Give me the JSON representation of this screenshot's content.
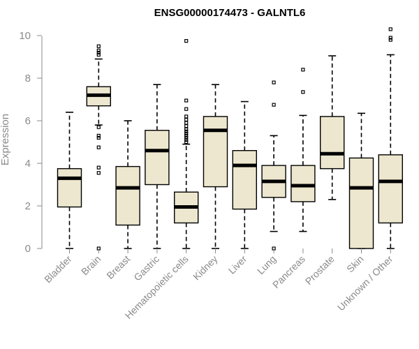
{
  "chart_data": {
    "type": "boxplot",
    "title": "ENSG00000174473 - GALNTL6",
    "xlabel": "",
    "ylabel": "Expression",
    "ylim": [
      0,
      10.5
    ],
    "yticks": [
      0,
      2,
      4,
      6,
      8,
      10
    ],
    "grid": false,
    "legend": "none",
    "colors": {
      "box_fill": "#ede7cf",
      "stroke": "#000000",
      "axis": "#888888",
      "text": "#8a8a8a"
    },
    "categories": [
      "Bladder",
      "Brain",
      "Breast",
      "Gastric",
      "Hematopoietic cells",
      "Kidney",
      "Liver",
      "Lung",
      "Pancreas",
      "Prostate",
      "Skin",
      "Unknown / Other"
    ],
    "boxes": [
      {
        "name": "Bladder",
        "min": 0.0,
        "q1": 1.95,
        "median": 3.3,
        "q3": 3.75,
        "max": 6.4,
        "outliers": []
      },
      {
        "name": "Brain",
        "min": 5.8,
        "q1": 6.7,
        "median": 7.2,
        "q3": 7.6,
        "max": 8.9,
        "outliers": [
          9.5,
          9.3,
          9.2,
          9.1,
          5.7,
          5.3,
          5.2,
          4.75,
          3.8,
          3.55,
          0.0
        ]
      },
      {
        "name": "Breast",
        "min": 0.0,
        "q1": 1.1,
        "median": 2.85,
        "q3": 3.85,
        "max": 6.0,
        "outliers": []
      },
      {
        "name": "Gastric",
        "min": 0.0,
        "q1": 3.0,
        "median": 4.6,
        "q3": 5.55,
        "max": 7.7,
        "outliers": []
      },
      {
        "name": "Hematopoietic cells",
        "min": 0.0,
        "q1": 1.2,
        "median": 1.95,
        "q3": 2.65,
        "max": 4.9,
        "outliers": [
          9.75,
          6.95,
          6.55,
          6.2,
          6.05,
          5.9,
          5.75,
          5.6,
          5.5,
          5.4,
          5.3,
          5.2,
          5.1,
          5.0
        ]
      },
      {
        "name": "Kidney",
        "min": 0.0,
        "q1": 2.9,
        "median": 5.55,
        "q3": 6.2,
        "max": 7.7,
        "outliers": []
      },
      {
        "name": "Liver",
        "min": 0.0,
        "q1": 1.85,
        "median": 3.9,
        "q3": 4.6,
        "max": 6.9,
        "outliers": []
      },
      {
        "name": "Lung",
        "min": 0.8,
        "q1": 2.4,
        "median": 3.15,
        "q3": 3.9,
        "max": 5.3,
        "outliers": [
          7.8,
          6.75,
          0.0
        ]
      },
      {
        "name": "Pancreas",
        "min": 0.8,
        "q1": 2.2,
        "median": 2.95,
        "q3": 3.9,
        "max": 6.25,
        "outliers": [
          8.4,
          7.35
        ]
      },
      {
        "name": "Prostate",
        "min": 2.3,
        "q1": 3.75,
        "median": 4.45,
        "q3": 6.2,
        "max": 9.05,
        "outliers": []
      },
      {
        "name": "Skin",
        "min": 0.0,
        "q1": 0.0,
        "median": 2.85,
        "q3": 4.25,
        "max": 6.35,
        "outliers": []
      },
      {
        "name": "Unknown / Other",
        "min": 0.0,
        "q1": 1.2,
        "median": 3.15,
        "q3": 4.4,
        "max": 9.1,
        "outliers": [
          10.3,
          9.9,
          9.8
        ]
      }
    ]
  }
}
